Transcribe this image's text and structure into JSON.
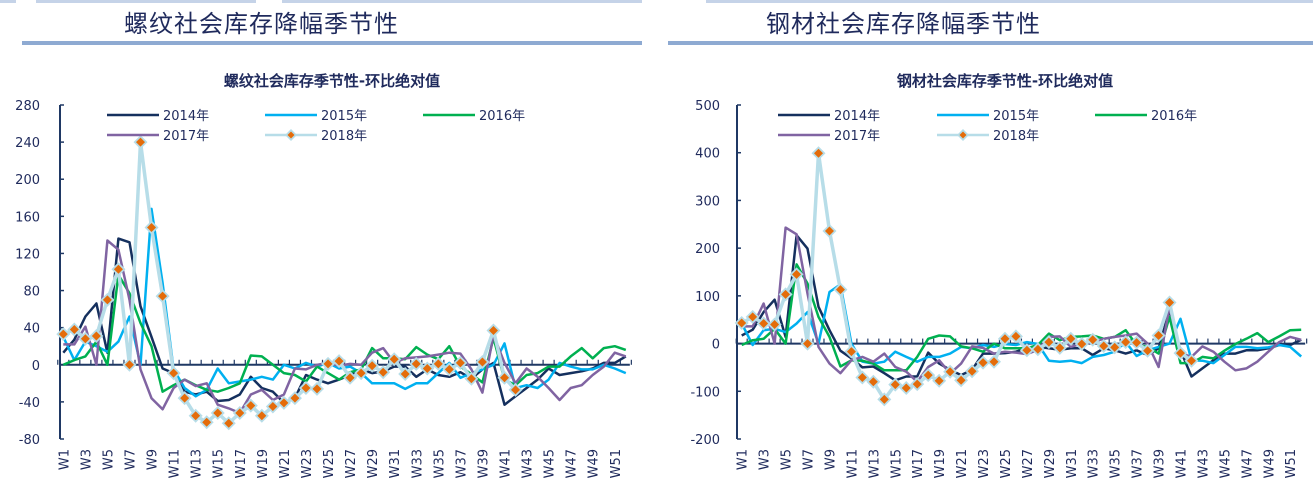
{
  "header": {
    "left_title": "螺纹社会库存降幅季节性",
    "right_title": "钢材社会库存降幅季节性"
  },
  "colors": {
    "2014年": "#15305e",
    "2015年": "#00b0f0",
    "2016年": "#00b050",
    "2017年": "#8064a2",
    "2018年": "#b7dde8",
    "2018_marker": "#e46c0a",
    "axis": "#1f3864",
    "header_bar": "#8eaad2"
  },
  "chart_data": [
    {
      "type": "line",
      "title": "螺纹社会库存季节性-环比绝对值",
      "xlabel": "",
      "ylabel": "",
      "ylim": [
        -80,
        280
      ],
      "yticks": [
        "280",
        "240",
        "200",
        "160",
        "120",
        "80",
        "40",
        "0",
        "-40",
        "-80"
      ],
      "ytick_values": [
        280,
        240,
        200,
        160,
        120,
        80,
        40,
        0,
        -40,
        -80
      ],
      "xtick_labels": [
        "W1",
        "W3",
        "W5",
        "W7",
        "W9",
        "W11",
        "W13",
        "W15",
        "W17",
        "W19",
        "W21",
        "W23",
        "W25",
        "W27",
        "W29",
        "W31",
        "W33",
        "W35",
        "W37",
        "W39",
        "W41",
        "W43",
        "W45",
        "W47",
        "W49",
        "W51"
      ],
      "grid": false,
      "legend": "top",
      "series": [
        {
          "name": "2014年",
          "values": [
            13,
            27,
            52,
            66,
            13,
            136,
            132,
            63,
            30,
            -4,
            -9,
            -29,
            -32,
            -29,
            -39,
            -38,
            -32,
            -13,
            -25,
            -29,
            -41,
            -36,
            -11,
            -16,
            -20,
            -16,
            -11,
            -5,
            -9,
            -7,
            -2,
            -2,
            -13,
            -5,
            -11,
            -13,
            -8,
            -15,
            -5,
            2,
            -43,
            -34,
            -25,
            -16,
            -4,
            -11,
            -9,
            -7,
            -4,
            2,
            2,
            9
          ]
        },
        {
          "name": "2015年",
          "values": [
            30,
            5,
            25,
            20,
            14,
            25,
            52,
            0,
            168,
            88,
            -5,
            -25,
            -34,
            -27,
            -4,
            -20,
            -18,
            -16,
            -13,
            -16,
            0,
            -4,
            2,
            -2,
            2,
            -4,
            -2,
            -9,
            -20,
            -20,
            -20,
            -26,
            -20,
            -20,
            -9,
            2,
            -14,
            -9,
            -5,
            0,
            23,
            -25,
            -22,
            -25,
            -16,
            2,
            -2,
            -5,
            -5,
            0,
            -4,
            -9
          ]
        },
        {
          "name": "2016年",
          "values": [
            0,
            5,
            9,
            25,
            0,
            97,
            77,
            45,
            20,
            -29,
            -22,
            -16,
            -22,
            -27,
            -29,
            -25,
            -20,
            10,
            9,
            0,
            -9,
            -11,
            -18,
            -2,
            -9,
            -16,
            -8,
            -5,
            18,
            7,
            7,
            6,
            19,
            11,
            6,
            20,
            -2,
            -10,
            -19,
            29,
            -16,
            -22,
            -11,
            -9,
            -2,
            -2,
            9,
            18,
            7,
            18,
            20,
            16
          ]
        },
        {
          "name": "2017年",
          "values": [
            22,
            22,
            41,
            0,
            134,
            124,
            70,
            -5,
            -36,
            -48,
            -25,
            -16,
            -23,
            -20,
            -43,
            -47,
            -52,
            -32,
            -27,
            -38,
            -32,
            -4,
            -5,
            0,
            2,
            -1,
            1,
            0,
            13,
            18,
            2,
            7,
            8,
            9,
            11,
            13,
            12,
            -5,
            -30,
            32,
            2,
            -20,
            -4,
            -13,
            -25,
            -38,
            -25,
            -22,
            -11,
            -2,
            13,
            9
          ]
        },
        {
          "name": "2018年",
          "values": [
            33,
            38,
            28,
            31,
            70,
            103,
            0,
            240,
            148,
            74,
            -9,
            -36,
            -55,
            -62,
            -52,
            -63,
            -52,
            -44,
            -55,
            -45,
            -41,
            -36,
            -25,
            -26,
            1,
            4,
            -14,
            -9,
            -1,
            -8,
            6,
            -10,
            1,
            -4,
            1,
            -5,
            2,
            -15,
            3,
            37,
            -14,
            -27
          ]
        }
      ]
    },
    {
      "type": "line",
      "title": "钢材社会库存季节性-环比绝对值",
      "xlabel": "",
      "ylabel": "",
      "ylim": [
        -200,
        500
      ],
      "yticks": [
        "500",
        "400",
        "300",
        "200",
        "100",
        "0",
        "-100",
        "-200"
      ],
      "ytick_values": [
        500,
        400,
        300,
        200,
        100,
        0,
        -100,
        -200
      ],
      "xtick_labels": [
        "W1",
        "W3",
        "W5",
        "W7",
        "W9",
        "W11",
        "W13",
        "W15",
        "W17",
        "W19",
        "W21",
        "W23",
        "W25",
        "W27",
        "W29",
        "W31",
        "W33",
        "W35",
        "W37",
        "W39",
        "W41",
        "W43",
        "W45",
        "W47",
        "W49",
        "W51"
      ],
      "grid": false,
      "legend": "top",
      "series": [
        {
          "name": "2014年",
          "values": [
            17,
            29,
            66,
            92,
            14,
            227,
            199,
            77,
            28,
            -15,
            -31,
            -50,
            -48,
            -62,
            -77,
            -69,
            -69,
            -19,
            -42,
            -55,
            -66,
            -55,
            -21,
            -21,
            -20,
            -17,
            -10,
            -7,
            -10,
            -13,
            -10,
            -10,
            -24,
            -10,
            -14,
            -21,
            -14,
            -24,
            -10,
            70,
            -14,
            -69,
            -52,
            -35,
            -21,
            -21,
            -14,
            -14,
            -10,
            -3,
            -3,
            8
          ]
        },
        {
          "name": "2015年",
          "values": [
            42,
            -3,
            28,
            31,
            24,
            42,
            66,
            0,
            108,
            124,
            0,
            -38,
            -42,
            -38,
            -17,
            -28,
            -38,
            -28,
            -28,
            -21,
            -7,
            -10,
            -3,
            -7,
            -1,
            -3,
            3,
            -1,
            -36,
            -38,
            -36,
            -41,
            -28,
            -24,
            -17,
            3,
            -26,
            -14,
            -7,
            0,
            52,
            -35,
            -36,
            -41,
            -24,
            -7,
            -7,
            -10,
            -8,
            -3,
            -7,
            -27
          ]
        },
        {
          "name": "2016年",
          "values": [
            -3,
            7,
            10,
            31,
            0,
            166,
            126,
            56,
            14,
            -48,
            -35,
            -36,
            -42,
            -56,
            -56,
            -56,
            -28,
            10,
            17,
            15,
            -6,
            -10,
            -17,
            0,
            -10,
            -10,
            -10,
            -3,
            21,
            7,
            14,
            15,
            17,
            10,
            14,
            28,
            -3,
            -7,
            -21,
            56,
            -41,
            -41,
            -28,
            -31,
            -15,
            -1,
            10,
            22,
            3,
            15,
            28,
            29
          ]
        },
        {
          "name": "2017年",
          "values": [
            36,
            36,
            84,
            0,
            243,
            229,
            105,
            -7,
            -42,
            -62,
            -35,
            -28,
            -38,
            -21,
            -49,
            -59,
            -80,
            -49,
            -35,
            -63,
            -42,
            -6,
            -9,
            -21,
            -17,
            -19,
            -22,
            -13,
            14,
            15,
            -7,
            0,
            3,
            10,
            14,
            17,
            21,
            0,
            -49,
            77,
            -20,
            -28,
            -6,
            -17,
            -38,
            -56,
            -52,
            -38,
            -17,
            3,
            14,
            8
          ]
        },
        {
          "name": "2018年",
          "values": [
            43,
            56,
            42,
            40,
            103,
            145,
            0,
            399,
            236,
            113,
            -17,
            -71,
            -80,
            -117,
            -86,
            -93,
            -85,
            -66,
            -78,
            -59,
            -77,
            -58,
            -40,
            -38,
            10,
            15,
            -14,
            -12,
            3,
            -9,
            10,
            -1,
            8,
            -5,
            -8,
            3,
            2,
            -15,
            17,
            86,
            -20,
            -36
          ]
        }
      ]
    }
  ]
}
